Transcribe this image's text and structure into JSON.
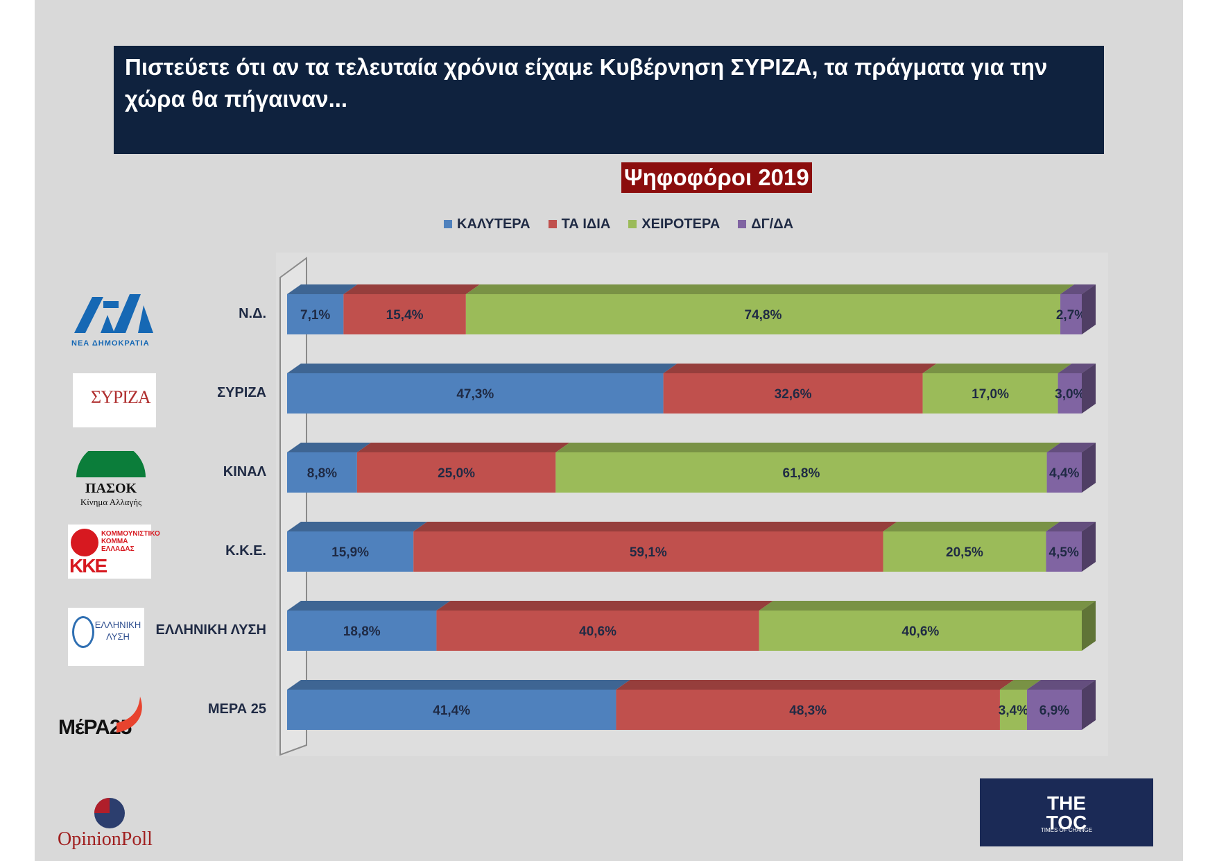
{
  "title": {
    "line1": "Πιστεύετε ότι αν τα τελευταία χρόνια είχαμε Κυβέρνηση ΣΥΡΙΖΑ, τα πράγματα για την",
    "line2": "χώρα θα πήγαιναν...",
    "subtitle": "Ψηφοφόροι 2019"
  },
  "colors": {
    "title_bg": "#0f223e",
    "subtitle_bg": "#8b0d0d",
    "better": "#4f81bd",
    "same": "#c0504d",
    "worse": "#9bbb59",
    "dk": "#8064a2"
  },
  "logos": {
    "nd": "ΝΕΑ ΔΗΜΟΚΡΑΤΙΑ",
    "pasok": "ΠΑΣΟΚ",
    "pasok_sub": "Κίνημα Αλλαγής",
    "kke": "ΚΚΕ",
    "elliniki": "ΕΛΛΗΝΙΚΗ ΛΥΣΗ",
    "mera": "ΜέΡΑ25",
    "opinion": "OpinionPoll",
    "toc": "THE TOC",
    "toc_sub": "TIMES OF CHANGE"
  },
  "chart_data": {
    "type": "bar",
    "orientation": "horizontal",
    "stacked": true,
    "xlim": [
      0,
      100
    ],
    "legend_position": "top",
    "categories": [
      "Ν.Δ.",
      "ΣΥΡΙΖΑ",
      "ΚΙΝΑΛ",
      "Κ.Κ.Ε.",
      "ΕΛΛΗΝΙΚΗ ΛΥΣΗ",
      "ΜΕΡΑ 25"
    ],
    "series": [
      {
        "name": "ΚΑΛΥΤΕΡΑ",
        "color": "#4f81bd",
        "values": [
          7.1,
          47.3,
          8.8,
          15.9,
          18.8,
          41.4
        ],
        "labels": [
          "7,1%",
          "47,3%",
          "8,8%",
          "15,9%",
          "18,8%",
          "41,4%"
        ]
      },
      {
        "name": "ΤΑ ΙΔΙΑ",
        "color": "#c0504d",
        "values": [
          15.4,
          32.6,
          25.0,
          59.1,
          40.6,
          48.3
        ],
        "labels": [
          "15,4%",
          "32,6%",
          "25,0%",
          "59,1%",
          "40,6%",
          "48,3%"
        ]
      },
      {
        "name": "ΧΕΙΡΟΤΕΡΑ",
        "color": "#9bbb59",
        "values": [
          74.8,
          17.0,
          61.8,
          20.5,
          40.6,
          3.4
        ],
        "labels": [
          "74,8%",
          "17,0%",
          "61,8%",
          "20,5%",
          "40,6%",
          "3,4%"
        ]
      },
      {
        "name": "ΔΓ/ΔΑ",
        "color": "#8064a2",
        "values": [
          2.7,
          3.0,
          4.4,
          4.5,
          0,
          6.9
        ],
        "labels": [
          "2,7%",
          "3,0%",
          "4,4%",
          "4,5%",
          "",
          "6,9%"
        ]
      }
    ]
  }
}
